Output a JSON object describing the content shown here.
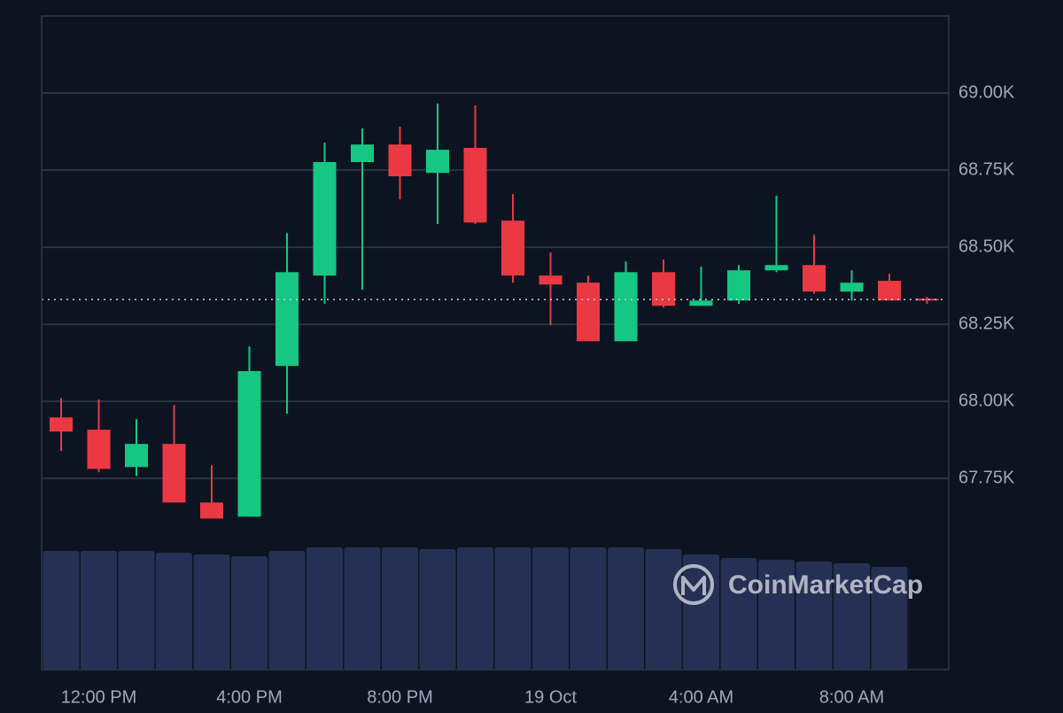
{
  "chart_data": {
    "type": "candlestick",
    "watermark": "CoinMarketCap",
    "categories": [
      null,
      "12:00 PM",
      null,
      null,
      null,
      "4:00 PM",
      null,
      null,
      null,
      "8:00 PM",
      null,
      null,
      null,
      "19 Oct",
      null,
      null,
      null,
      "4:00 AM",
      null,
      null,
      null,
      "8:00 AM",
      null,
      null
    ],
    "open": [
      67948,
      67908,
      67787,
      67862,
      67672,
      67626,
      68115,
      68408,
      68776,
      68833,
      68741,
      68822,
      68586,
      68408,
      68385,
      68195,
      68419,
      68310,
      68327,
      68425,
      68442,
      68356,
      68391,
      68333
    ],
    "high": [
      68011,
      68006,
      67942,
      67988,
      67793,
      68178,
      68546,
      68839,
      68885,
      68891,
      68966,
      68960,
      68672,
      68483,
      68408,
      68454,
      68460,
      68437,
      68442,
      68667,
      68540,
      68425,
      68414,
      68339
    ],
    "low": [
      67839,
      67770,
      67758,
      67672,
      67620,
      67626,
      67960,
      68316,
      68362,
      68655,
      68575,
      68575,
      68385,
      68247,
      68195,
      68195,
      68304,
      68310,
      68316,
      68419,
      68350,
      68327,
      68327,
      68316
    ],
    "close": [
      67902,
      67781,
      67862,
      67672,
      67620,
      68098,
      68419,
      68776,
      68833,
      68730,
      68816,
      68580,
      68408,
      68379,
      68195,
      68419,
      68310,
      68327,
      68425,
      68442,
      68356,
      68385,
      68327,
      68327
    ],
    "volume": [
      134,
      134,
      134,
      132,
      130,
      128,
      134,
      138,
      138,
      138,
      136,
      138,
      138,
      138,
      138,
      138,
      136,
      130,
      126,
      124,
      122,
      120,
      116,
      null
    ],
    "current_price": 68330,
    "up_color": "#16c784",
    "down_color": "#ea3943",
    "volume_color": "#263054",
    "ylim": [
      67130,
      69250
    ],
    "yticks": [
      {
        "value": 67750,
        "label": "67.75K"
      },
      {
        "value": 68000,
        "label": "68.00K"
      },
      {
        "value": 68250,
        "label": "68.25K"
      },
      {
        "value": 68500,
        "label": "68.50K"
      },
      {
        "value": 68750,
        "label": "68.75K"
      },
      {
        "value": 69000,
        "label": "69.00K"
      }
    ],
    "grid": true
  }
}
